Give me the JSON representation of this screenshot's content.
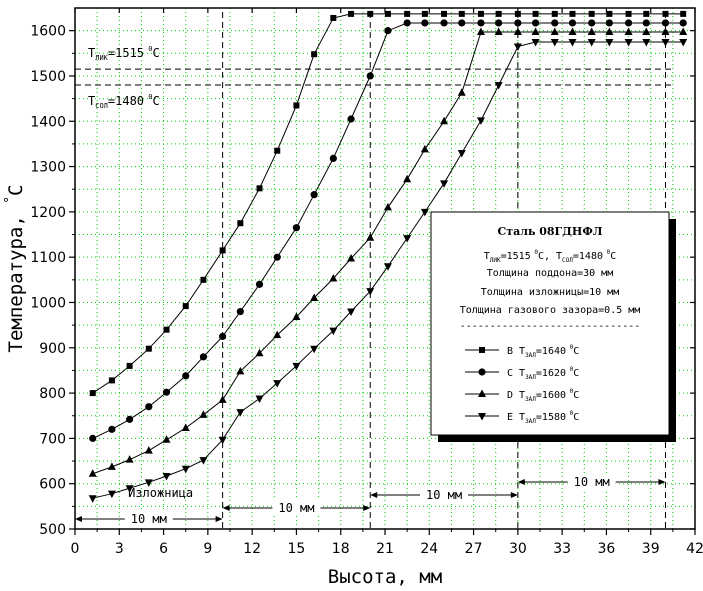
{
  "chart_data": {
    "type": "line",
    "xlabel": "Высота, мм",
    "ylabel": "Температура, ",
    "ylabel_unit": "°C",
    "xlim": [
      0,
      42
    ],
    "ylim": [
      500,
      1650
    ],
    "grid": true,
    "x_ticks": [
      0,
      3,
      6,
      9,
      12,
      15,
      18,
      21,
      24,
      27,
      30,
      33,
      36,
      39,
      42
    ],
    "y_ticks": [
      500,
      600,
      700,
      800,
      900,
      1000,
      1100,
      1200,
      1300,
      1400,
      1500,
      1600
    ],
    "series": [
      {
        "name": "B",
        "marker": "square",
        "x": [
          1.2,
          2.5,
          3.7,
          5.0,
          6.2,
          7.5,
          8.7,
          10.0,
          11.2,
          12.5,
          13.7,
          15.0,
          16.2,
          17.5,
          18.7,
          20.0,
          21.2,
          22.5,
          23.7,
          25.0,
          26.2,
          27.5,
          28.7,
          30.0,
          31.2,
          32.5,
          33.7,
          35.0,
          36.2,
          37.5,
          38.7,
          40.0,
          41.2
        ],
        "y": [
          800,
          828,
          860,
          898,
          940,
          992,
          1050,
          1115,
          1175,
          1252,
          1335,
          1435,
          1548,
          1628,
          1637,
          1637,
          1637,
          1637,
          1637,
          1637,
          1637,
          1637,
          1637,
          1637,
          1637,
          1637,
          1637,
          1637,
          1637,
          1637,
          1637,
          1637,
          1637
        ]
      },
      {
        "name": "C",
        "marker": "circle",
        "x": [
          1.2,
          2.5,
          3.7,
          5.0,
          6.2,
          7.5,
          8.7,
          10.0,
          11.2,
          12.5,
          13.7,
          15.0,
          16.2,
          17.5,
          18.7,
          20.0,
          21.2,
          22.5,
          23.7,
          25.0,
          26.2,
          27.5,
          28.7,
          30.0,
          31.2,
          32.5,
          33.7,
          35.0,
          36.2,
          37.5,
          38.7,
          40.0,
          41.2
        ],
        "y": [
          700,
          720,
          742,
          770,
          802,
          838,
          880,
          925,
          980,
          1040,
          1100,
          1165,
          1238,
          1318,
          1405,
          1500,
          1600,
          1617,
          1617,
          1617,
          1617,
          1617,
          1617,
          1617,
          1617,
          1617,
          1617,
          1617,
          1617,
          1617,
          1617,
          1617,
          1617
        ]
      },
      {
        "name": "D",
        "marker": "triangle-up",
        "x": [
          1.2,
          2.5,
          3.7,
          5.0,
          6.2,
          7.5,
          8.7,
          10.0,
          11.2,
          12.5,
          13.7,
          15.0,
          16.2,
          17.5,
          18.7,
          20.0,
          21.2,
          22.5,
          23.7,
          25.0,
          26.2,
          27.5,
          28.7,
          30.0,
          31.2,
          32.5,
          33.7,
          35.0,
          36.2,
          37.5,
          38.7,
          40.0,
          41.2
        ],
        "y": [
          622,
          637,
          653,
          673,
          697,
          723,
          752,
          785,
          848,
          888,
          928,
          968,
          1010,
          1053,
          1097,
          1143,
          1210,
          1272,
          1338,
          1400,
          1463,
          1597,
          1597,
          1597,
          1597,
          1597,
          1597,
          1597,
          1597,
          1597,
          1597,
          1597,
          1597
        ]
      },
      {
        "name": "E",
        "marker": "triangle-down",
        "x": [
          1.2,
          2.5,
          3.7,
          5.0,
          6.2,
          7.5,
          8.7,
          10.0,
          11.2,
          12.5,
          13.7,
          15.0,
          16.2,
          17.5,
          18.7,
          20.0,
          21.2,
          22.5,
          23.7,
          25.0,
          26.2,
          27.5,
          28.7,
          30.0,
          31.2,
          32.5,
          33.7,
          35.0,
          36.2,
          37.5,
          38.7,
          40.0,
          41.2
        ],
        "y": [
          568,
          578,
          590,
          603,
          617,
          633,
          652,
          697,
          758,
          788,
          822,
          860,
          898,
          938,
          980,
          1025,
          1080,
          1142,
          1200,
          1263,
          1330,
          1402,
          1480,
          1565,
          1575,
          1575,
          1575,
          1575,
          1575,
          1575,
          1575,
          1575,
          1575
        ]
      }
    ],
    "reference_lines": [
      {
        "axis": "y",
        "value": 1515,
        "label_main": "T",
        "label_sub": "ЛИК",
        "label_rest": "=1515",
        "label_sup": "0",
        "label_unit": "C"
      },
      {
        "axis": "y",
        "value": 1480,
        "label_main": "T",
        "label_sub": "СОЛ",
        "label_rest": "=1480",
        "label_sup": "0",
        "label_unit": "C"
      }
    ],
    "vertical_lines": [
      10,
      20,
      30,
      40
    ],
    "dimension_annotations": [
      {
        "label": "Изложница",
        "from": 0,
        "to": 10
      },
      {
        "label": "10 мм",
        "from": 0,
        "to": 10
      },
      {
        "label": "10 мм",
        "from": 10,
        "to": 20
      },
      {
        "label": "10 мм",
        "from": 20,
        "to": 30
      },
      {
        "label": "10 мм",
        "from": 30,
        "to": 40
      }
    ],
    "legend": {
      "placement": "right",
      "title": "Сталь 08ГДНФЛ",
      "info_line1": "T",
      "info_line1_sub": "ЛИК",
      "info_line1_rest": "=1515",
      "info_line1_sup": "0",
      "info_line1_unit": "C, T",
      "info_line1_sub2": "СОЛ",
      "info_line1_rest2": "=1480",
      "info_line1_sup2": "0",
      "info_line1_unit2": "C",
      "line2": "Толщина поддона=30 мм",
      "line3": "Толщина изложницы=10 мм",
      "line4": "Толщина газового зазора=0.5 мм",
      "separator": "------------------------------",
      "entries": [
        {
          "series": "B",
          "label_main": "B T",
          "label_sub": "ЗАЛ",
          "label_rest": "=1640",
          "label_sup": "0",
          "label_unit": "C"
        },
        {
          "series": "C",
          "label_main": "C T",
          "label_sub": "ЗАЛ",
          "label_rest": "=1620",
          "label_sup": "0",
          "label_unit": "C"
        },
        {
          "series": "D",
          "label_main": "D T",
          "label_sub": "ЗАЛ",
          "label_rest": "=1600",
          "label_sup": "0",
          "label_unit": "C"
        },
        {
          "series": "E",
          "label_main": "E T",
          "label_sub": "ЗАЛ",
          "label_rest": "=1580",
          "label_sup": "0",
          "label_unit": "C"
        }
      ]
    },
    "colors": {
      "line": "#000000",
      "grid": "#00cc00",
      "background": "#ffffff"
    }
  }
}
